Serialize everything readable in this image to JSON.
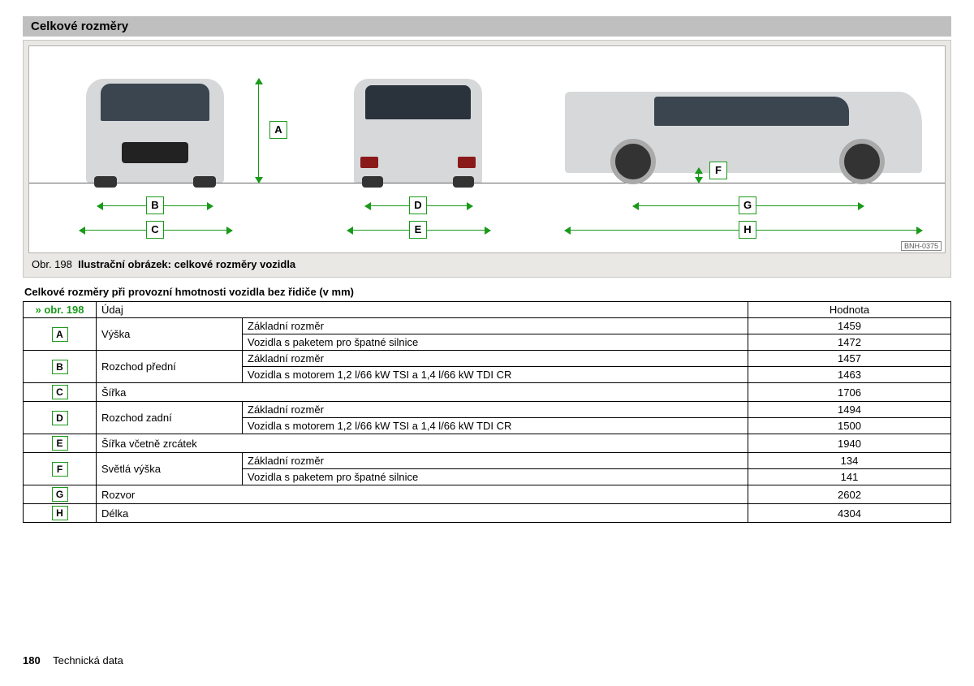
{
  "section_title": "Celkové rozměry",
  "figure": {
    "caption_prefix": "Obr. 198",
    "caption_text": "Ilustrační obrázek: celkové rozměry vozidla",
    "img_code": "BNH-0375",
    "labels": {
      "A": "A",
      "B": "B",
      "C": "C",
      "D": "D",
      "E": "E",
      "F": "F",
      "G": "G",
      "H": "H"
    },
    "accent_color": "#1a9a1a",
    "car_body_color": "#d6d8da",
    "glass_color": "#3a4550"
  },
  "table": {
    "title": "Celkové rozměry při provozní hmotnosti vozidla bez řidiče (v mm)",
    "headers": {
      "ref": "» obr. 198",
      "udaj": "Údaj",
      "hodnota": "Hodnota"
    },
    "rows": [
      {
        "letter": "A",
        "udaj": "Výška",
        "sub": [
          {
            "desc": "Základní rozměr",
            "val": "1459"
          },
          {
            "desc": "Vozidla s paketem pro špatné silnice",
            "val": "1472"
          }
        ]
      },
      {
        "letter": "B",
        "udaj": "Rozchod přední",
        "sub": [
          {
            "desc": "Základní rozměr",
            "val": "1457"
          },
          {
            "desc": "Vozidla s motorem 1,2 l/66 kW TSI a 1,4 l/66 kW TDI CR",
            "val": "1463"
          }
        ]
      },
      {
        "letter": "C",
        "udaj": "Šířka",
        "sub": [
          {
            "desc": "",
            "val": "1706"
          }
        ]
      },
      {
        "letter": "D",
        "udaj": "Rozchod zadní",
        "sub": [
          {
            "desc": "Základní rozměr",
            "val": "1494"
          },
          {
            "desc": "Vozidla s motorem 1,2 l/66 kW TSI a 1,4 l/66 kW TDI CR",
            "val": "1500"
          }
        ]
      },
      {
        "letter": "E",
        "udaj": "Šířka včetně zrcátek",
        "sub": [
          {
            "desc": "",
            "val": "1940"
          }
        ]
      },
      {
        "letter": "F",
        "udaj": "Světlá výška",
        "sub": [
          {
            "desc": "Základní rozměr",
            "val": "134"
          },
          {
            "desc": "Vozidla s paketem pro špatné silnice",
            "val": "141"
          }
        ]
      },
      {
        "letter": "G",
        "udaj": "Rozvor",
        "sub": [
          {
            "desc": "",
            "val": "2602"
          }
        ]
      },
      {
        "letter": "H",
        "udaj": "Délka",
        "sub": [
          {
            "desc": "",
            "val": "4304"
          }
        ]
      }
    ]
  },
  "footer": {
    "page_number": "180",
    "section": "Technická data"
  }
}
